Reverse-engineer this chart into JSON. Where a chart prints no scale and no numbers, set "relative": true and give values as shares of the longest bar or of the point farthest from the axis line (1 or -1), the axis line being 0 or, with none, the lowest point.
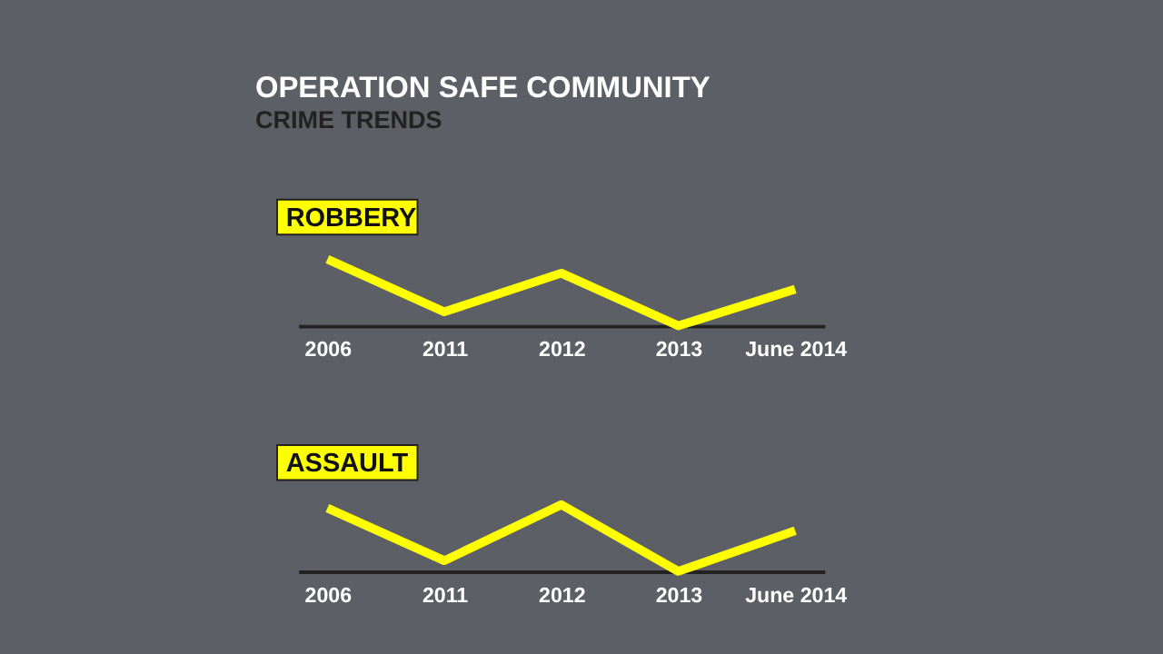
{
  "chart_data": [
    {
      "type": "line",
      "title": "OPERATION SAFE COMMUNITY",
      "subtitle": "CRIME TRENDS",
      "relative": true,
      "grid": false,
      "line_style": "solid",
      "categories": [
        "2006",
        "2011",
        "2012",
        "2013",
        "June 2014"
      ],
      "series": [
        {
          "name": "ROBBERY",
          "color": "#ffff00",
          "values": [
            1,
            0.21,
            0.79,
            0,
            0.55
          ]
        }
      ]
    },
    {
      "type": "line",
      "relative": true,
      "grid": false,
      "line_style": "solid",
      "categories": [
        "2006",
        "2011",
        "2012",
        "2013",
        "June 2014"
      ],
      "series": [
        {
          "name": "ASSAULT",
          "color": "#ffff00",
          "values": [
            0.95,
            0.16,
            1,
            0,
            0.61
          ]
        }
      ]
    }
  ]
}
